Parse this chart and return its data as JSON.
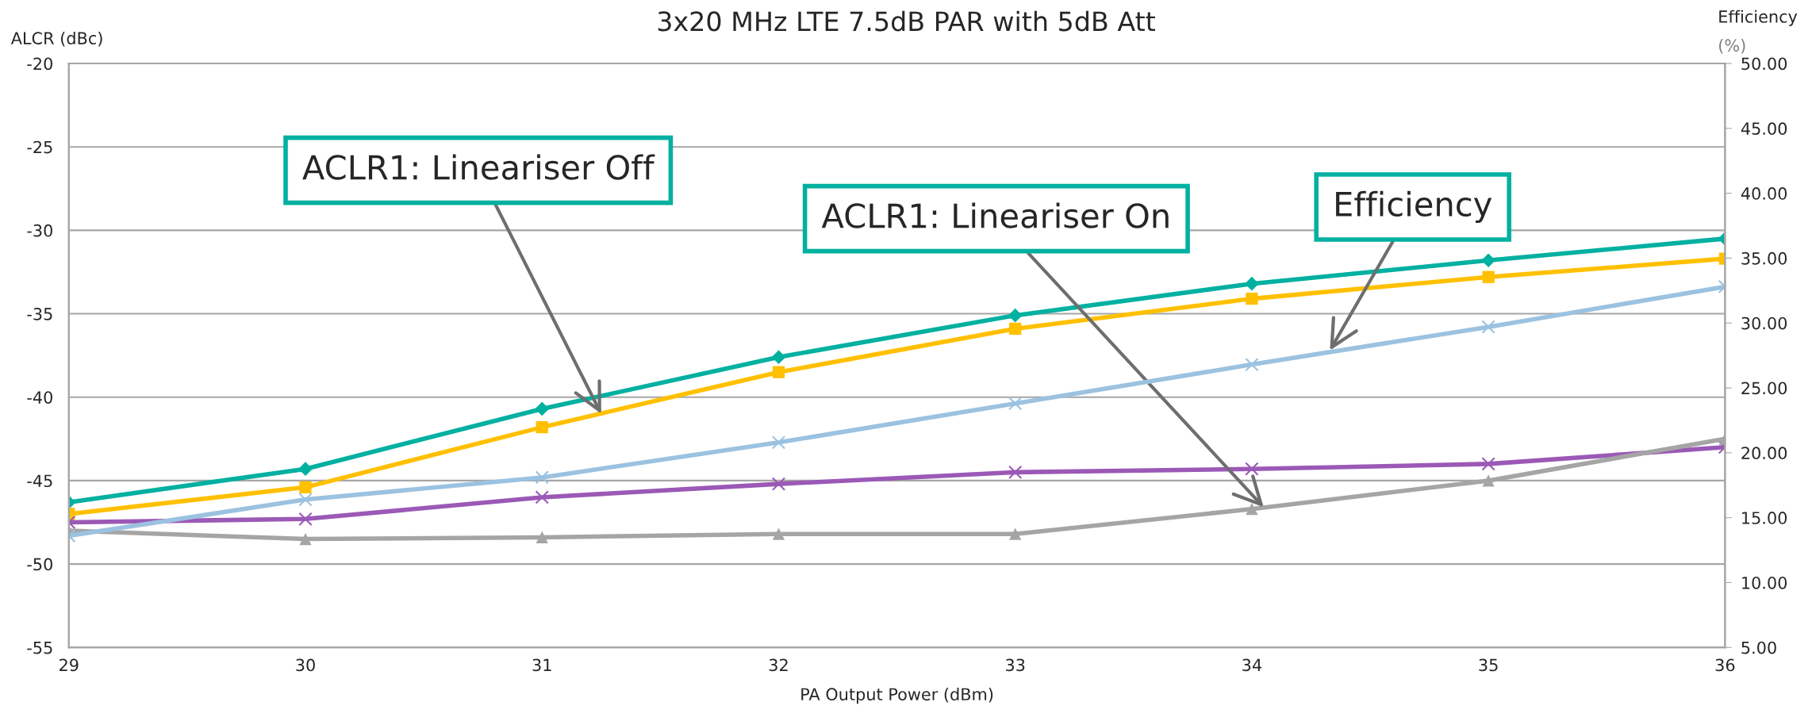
{
  "chart_data": {
    "type": "line",
    "title": "3x20 MHz LTE 7.5dB PAR with 5dB Att",
    "xlabel": "PA Output Power (dBm)",
    "ylabel": "ALCR (dBc)",
    "y2label": "Efficiency (%)",
    "x": [
      29,
      30,
      31,
      32,
      33,
      34,
      35,
      36
    ],
    "xlim": [
      29,
      36
    ],
    "xticks": [
      29,
      30,
      31,
      32,
      33,
      34,
      35,
      36
    ],
    "ylim": [
      -55,
      -20
    ],
    "yticks": [
      -55,
      -50,
      -45,
      -40,
      -35,
      -30,
      -25,
      -20
    ],
    "y2lim": [
      5,
      50
    ],
    "y2ticks": [
      {
        "value": 5,
        "label": "5.00"
      },
      {
        "value": 10,
        "label": "10.00"
      },
      {
        "value": 15,
        "label": "15.00"
      },
      {
        "value": 20,
        "label": "20.00"
      },
      {
        "value": 25,
        "label": "25.00"
      },
      {
        "value": 30,
        "label": "30.00"
      },
      {
        "value": 35,
        "label": "35.00"
      },
      {
        "value": 40,
        "label": "40.00"
      },
      {
        "value": 45,
        "label": "45.00"
      },
      {
        "value": 50,
        "label": "50.00"
      }
    ],
    "grid": "y",
    "legend": false,
    "series": [
      {
        "color": "#00b0a0",
        "marker": "diamond",
        "values": [
          -46.3,
          -44.3,
          -40.7,
          -37.6,
          -35.1,
          -33.2,
          -31.8,
          -30.5
        ]
      },
      {
        "color": "#ffc000",
        "marker": "square",
        "values": [
          -47.0,
          -45.4,
          -41.8,
          -38.5,
          -35.9,
          -34.1,
          -32.8,
          -31.7
        ]
      },
      {
        "color": "#9bc2e0",
        "marker": "cross",
        "axis": "y2",
        "values": [
          13.6,
          16.4,
          18.1,
          20.8,
          23.8,
          26.8,
          29.7,
          32.8
        ]
      },
      {
        "color": "#9b59b6",
        "marker": "cross",
        "values": [
          -47.5,
          -47.3,
          -46.0,
          -45.2,
          -44.5,
          -44.3,
          -44.0,
          -43.0
        ]
      },
      {
        "color": "#a5a5a5",
        "marker": "triangle",
        "values": [
          -48.0,
          -48.5,
          -48.4,
          -48.2,
          -48.2,
          -46.7,
          -45.0,
          -42.5
        ]
      }
    ],
    "annotations": [
      {
        "text": "ACLR1: Lineariser Off",
        "x": 31.25,
        "y": -41.0
      },
      {
        "text": "ACLR1: Lineariser On",
        "x": 34.05,
        "y": -46.6
      },
      {
        "text": "Efficiency",
        "x": 34.33,
        "y": -37.2
      }
    ]
  }
}
